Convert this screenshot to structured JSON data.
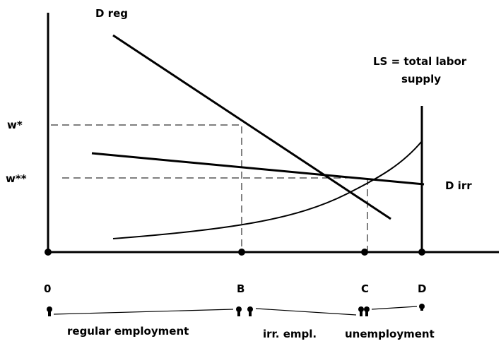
{
  "labels": {
    "d_reg": "D reg",
    "ls_line1": "LS = total labor",
    "ls_line2": "supply",
    "w_star": "w*",
    "w_star_star": "w**",
    "d_irr": "D irr"
  },
  "axis_points": [
    "0",
    "B",
    "C",
    "D"
  ],
  "segments": [
    "regular employment",
    "irr. empl.",
    "unemployment"
  ]
}
